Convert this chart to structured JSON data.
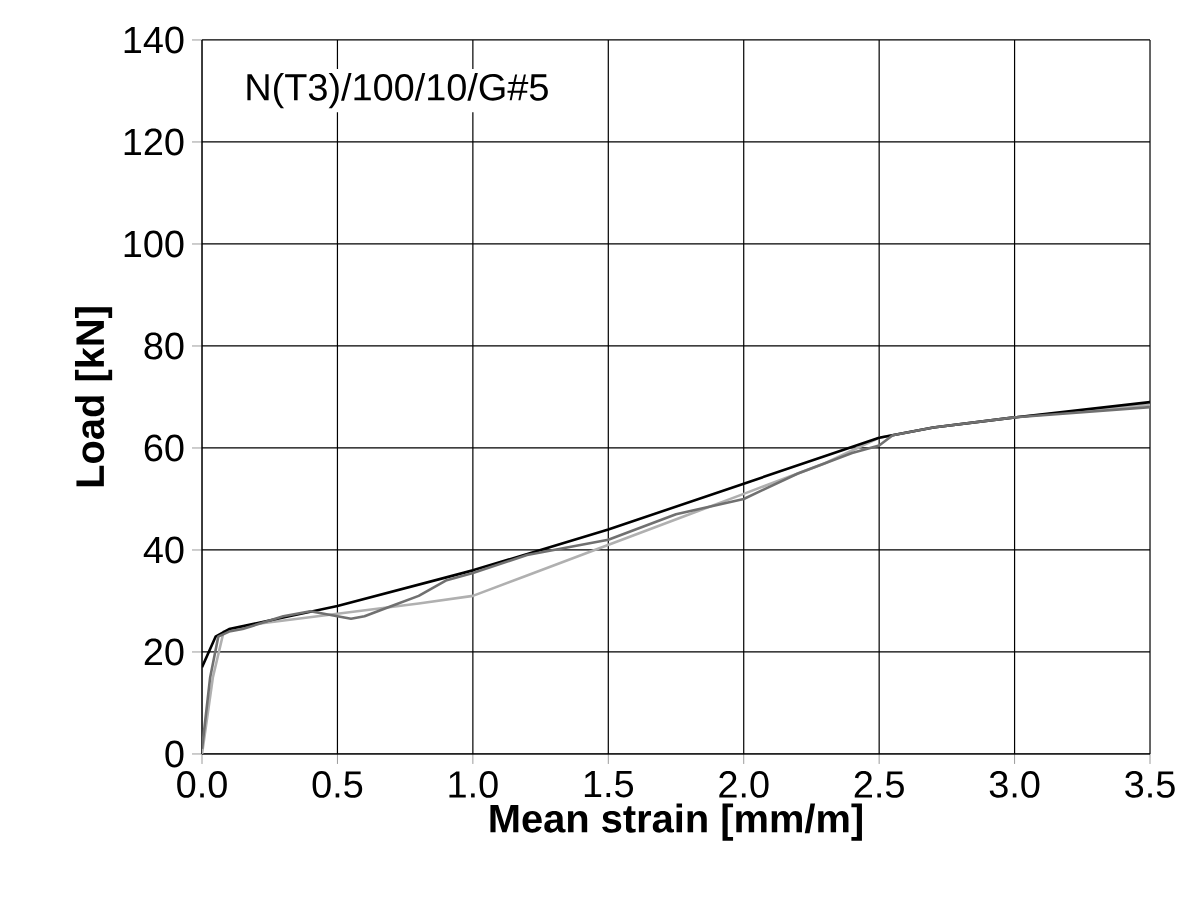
{
  "chart_data": {
    "type": "line",
    "xlabel": "Mean strain [mm/m]",
    "ylabel": "Load [kN]",
    "annotations": [
      "N(T3)/100/10/G#5"
    ],
    "xlim": [
      0,
      3.5
    ],
    "ylim": [
      0,
      140
    ],
    "xticks": [
      {
        "value": 0,
        "label": "0.0"
      },
      0.5,
      {
        "value": 1,
        "label": "1.0"
      },
      1.5,
      {
        "value": 2,
        "label": "2.0"
      },
      2.5,
      {
        "value": 3,
        "label": "3.0"
      },
      3.5
    ],
    "yticks": [
      0,
      20,
      40,
      60,
      80,
      100,
      120,
      140
    ],
    "grid": true,
    "marker": "none",
    "line_style": "solid",
    "series": [
      {
        "color": "#b0b0b0",
        "x": [
          0,
          0.04,
          0.08,
          0.2,
          0.5,
          0.8,
          1.0,
          1.2,
          1.5,
          1.8,
          2.0,
          2.3,
          2.5,
          2.7,
          3.0,
          3.5
        ],
        "values": [
          0,
          15,
          24,
          25.5,
          27.5,
          29.5,
          31,
          35,
          41,
          47,
          51,
          57,
          62,
          64,
          66,
          68.5
        ]
      },
      {
        "color": "#000000",
        "x": [
          0,
          0.05,
          0.1,
          0.5,
          1.0,
          1.5,
          2.0,
          2.5,
          2.7,
          3.0,
          3.5
        ],
        "values": [
          17,
          23,
          24.5,
          29,
          36,
          44,
          53,
          62,
          64,
          66,
          69
        ]
      },
      {
        "color": "#707070",
        "x": [
          0,
          0.03,
          0.06,
          0.1,
          0.15,
          0.3,
          0.4,
          0.5,
          0.55,
          0.6,
          0.7,
          0.8,
          0.9,
          1.0,
          1.2,
          1.5,
          1.75,
          2.0,
          2.2,
          2.4,
          2.5,
          2.55,
          2.7,
          3.0,
          3.5
        ],
        "values": [
          1,
          15,
          23,
          24,
          24.5,
          27,
          28,
          27,
          26.5,
          27,
          29,
          31,
          34,
          35.5,
          39,
          42,
          47,
          50,
          55,
          59,
          60.5,
          62.5,
          64,
          66,
          68
        ]
      }
    ]
  }
}
